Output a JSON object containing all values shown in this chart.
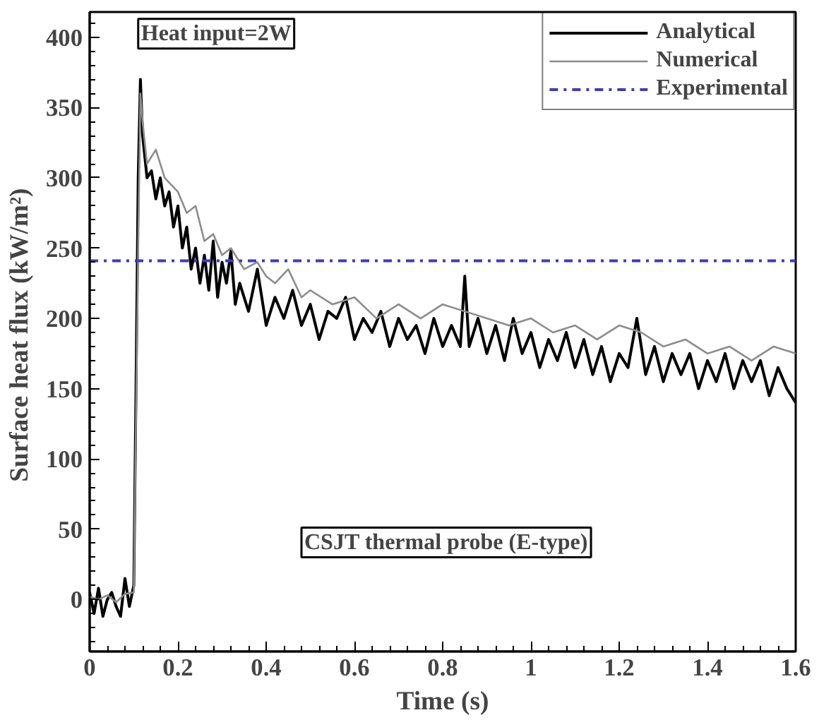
{
  "chart_data": {
    "type": "line",
    "xlabel": "Time (s)",
    "ylabel": "Surface heat flux  (kW/m²)",
    "xlim": [
      0,
      1.6
    ],
    "ylim": [
      -37,
      418
    ],
    "xticks": [
      {
        "value": 0,
        "label": "0"
      },
      0.2,
      0.4,
      0.6,
      0.8,
      {
        "value": 1,
        "label": "1"
      },
      1.2,
      1.4,
      1.6
    ],
    "yticks": [
      0,
      50,
      100,
      150,
      200,
      250,
      300,
      350,
      400
    ],
    "grid": false,
    "legend": "top right",
    "marker": "none",
    "line_style": "solid",
    "annotations": [
      "Heat input=2W",
      "CSJT thermal probe (E-type)"
    ],
    "ref_lines": [
      {
        "axis": "y",
        "value": 241,
        "label": "Experimental",
        "color": "#3a3ac8",
        "line_style": "dashdot"
      }
    ],
    "series": [
      {
        "name": "Analytical",
        "color": "#000000",
        "x": [
          0,
          0.01,
          0.02,
          0.03,
          0.04,
          0.05,
          0.06,
          0.07,
          0.08,
          0.09,
          0.1,
          0.105,
          0.11,
          0.115,
          0.12,
          0.13,
          0.14,
          0.15,
          0.16,
          0.17,
          0.18,
          0.19,
          0.2,
          0.21,
          0.22,
          0.23,
          0.24,
          0.25,
          0.26,
          0.27,
          0.28,
          0.29,
          0.3,
          0.31,
          0.32,
          0.33,
          0.34,
          0.36,
          0.38,
          0.4,
          0.42,
          0.44,
          0.46,
          0.48,
          0.5,
          0.52,
          0.54,
          0.56,
          0.58,
          0.6,
          0.62,
          0.64,
          0.66,
          0.68,
          0.7,
          0.72,
          0.74,
          0.76,
          0.78,
          0.8,
          0.82,
          0.84,
          0.85,
          0.86,
          0.88,
          0.9,
          0.92,
          0.94,
          0.96,
          0.98,
          1.0,
          1.02,
          1.04,
          1.06,
          1.08,
          1.1,
          1.12,
          1.14,
          1.16,
          1.18,
          1.2,
          1.22,
          1.24,
          1.26,
          1.28,
          1.3,
          1.32,
          1.34,
          1.36,
          1.38,
          1.4,
          1.42,
          1.44,
          1.46,
          1.48,
          1.5,
          1.52,
          1.54,
          1.56,
          1.58,
          1.6
        ],
        "values": [
          5,
          -10,
          8,
          -12,
          0,
          5,
          -5,
          -12,
          15,
          -5,
          10,
          150,
          300,
          370,
          330,
          300,
          305,
          285,
          300,
          280,
          290,
          265,
          280,
          250,
          265,
          235,
          250,
          225,
          245,
          220,
          255,
          215,
          240,
          225,
          248,
          210,
          225,
          205,
          235,
          195,
          215,
          200,
          220,
          195,
          210,
          185,
          205,
          200,
          215,
          185,
          200,
          190,
          205,
          180,
          200,
          185,
          195,
          175,
          200,
          180,
          195,
          180,
          230,
          180,
          200,
          175,
          195,
          170,
          200,
          175,
          190,
          165,
          185,
          170,
          190,
          165,
          185,
          160,
          180,
          155,
          175,
          165,
          200,
          160,
          180,
          155,
          175,
          160,
          175,
          150,
          170,
          155,
          175,
          150,
          170,
          155,
          170,
          145,
          165,
          150,
          140
        ]
      },
      {
        "name": "Numerical",
        "color": "#8c8c8c",
        "x": [
          0,
          0.02,
          0.04,
          0.06,
          0.08,
          0.1,
          0.11,
          0.115,
          0.12,
          0.13,
          0.15,
          0.17,
          0.2,
          0.22,
          0.24,
          0.26,
          0.28,
          0.3,
          0.32,
          0.35,
          0.38,
          0.4,
          0.42,
          0.45,
          0.48,
          0.5,
          0.55,
          0.6,
          0.65,
          0.7,
          0.75,
          0.8,
          0.85,
          0.9,
          0.95,
          1.0,
          1.05,
          1.1,
          1.15,
          1.2,
          1.25,
          1.3,
          1.35,
          1.4,
          1.45,
          1.5,
          1.55,
          1.6
        ],
        "values": [
          2,
          0,
          3,
          -2,
          4,
          5,
          250,
          360,
          340,
          310,
          320,
          300,
          290,
          275,
          280,
          255,
          260,
          245,
          250,
          235,
          240,
          230,
          225,
          235,
          215,
          220,
          210,
          215,
          200,
          210,
          200,
          210,
          205,
          200,
          195,
          200,
          190,
          195,
          185,
          195,
          190,
          180,
          185,
          175,
          180,
          170,
          180,
          175
        ]
      }
    ]
  }
}
